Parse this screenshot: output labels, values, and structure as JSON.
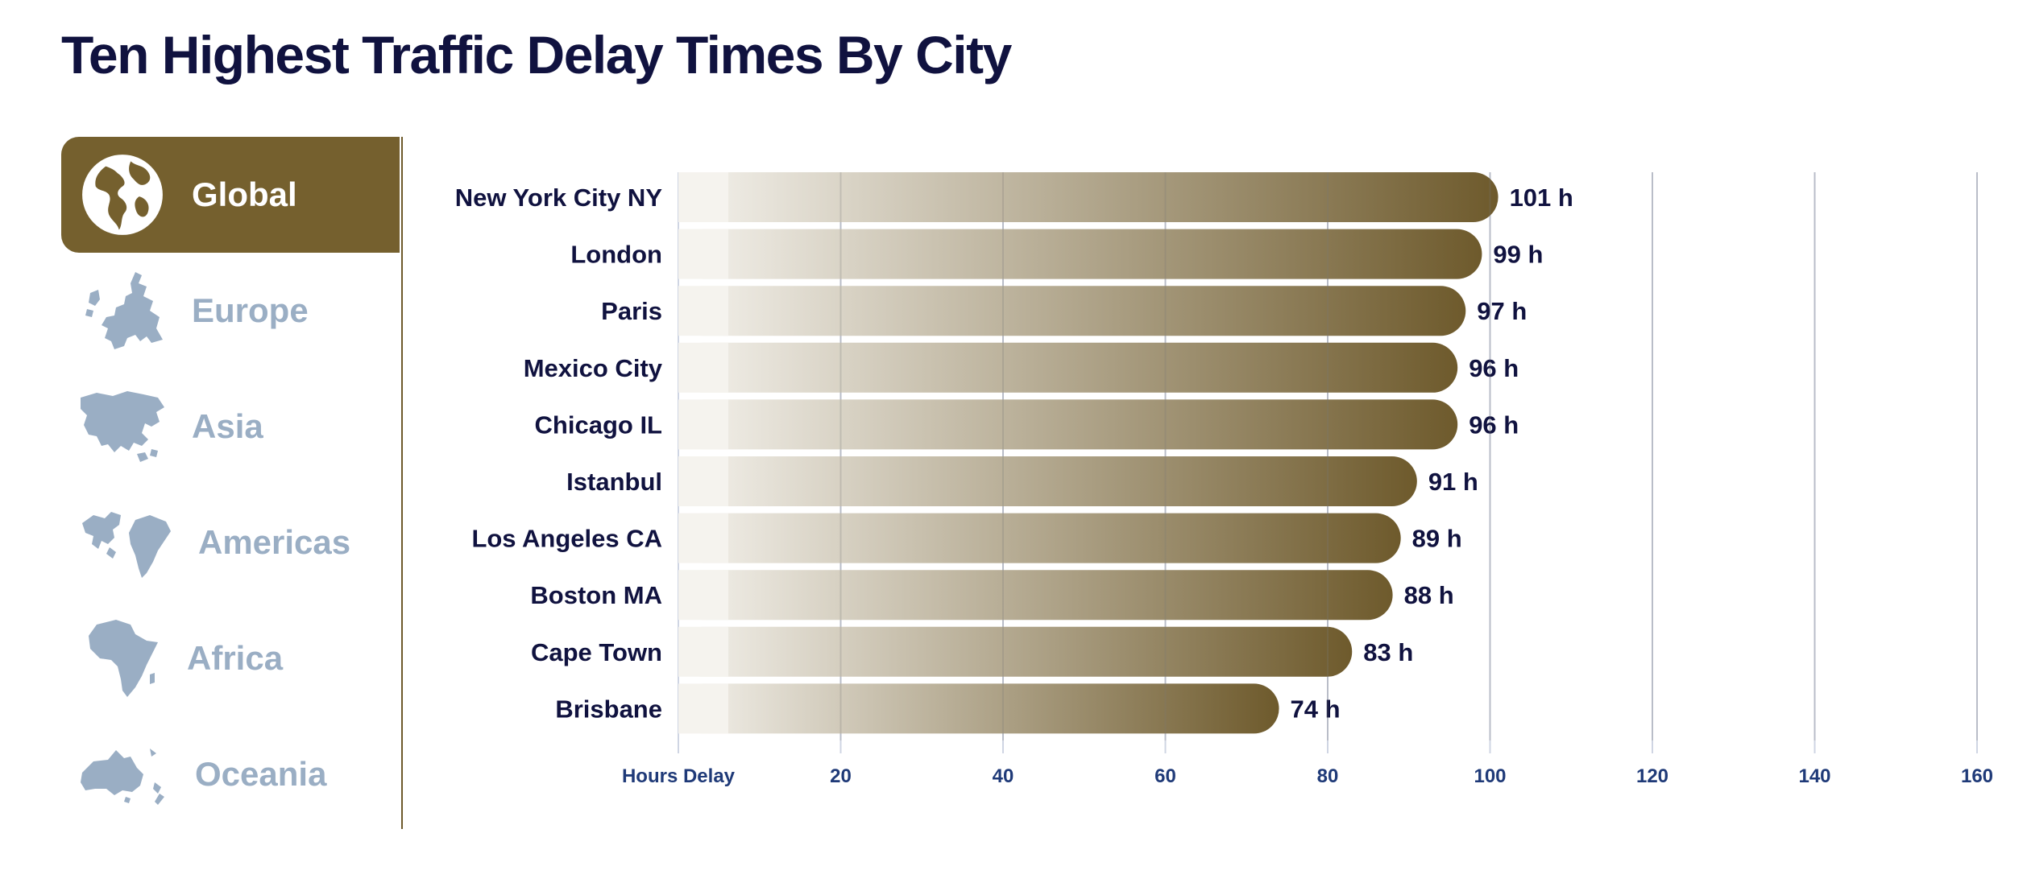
{
  "page": {
    "title": "Ten Highest Traffic Delay Times By City"
  },
  "sidebar": {
    "items": [
      {
        "label": "Global",
        "icon": "globe-icon",
        "active": true
      },
      {
        "label": "Europe",
        "icon": "europe-map-icon",
        "active": false
      },
      {
        "label": "Asia",
        "icon": "asia-map-icon",
        "active": false
      },
      {
        "label": "Americas",
        "icon": "americas-map-icon",
        "active": false
      },
      {
        "label": "Africa",
        "icon": "africa-map-icon",
        "active": false
      },
      {
        "label": "Oceania",
        "icon": "oceania-map-icon",
        "active": false
      }
    ]
  },
  "colors": {
    "accent": "#75602e",
    "bar_start": "#f5f3ee",
    "bar_end": "#6e5a2c",
    "inactive": "#9aaec4",
    "text": "#10123f",
    "axis_text": "#1f3a78"
  },
  "chart_data": {
    "type": "bar",
    "orientation": "horizontal",
    "xlabel": "Hours Delay",
    "value_suffix": " h",
    "xlim": [
      0,
      160
    ],
    "xticks": [
      20,
      40,
      60,
      80,
      100,
      120,
      140,
      160
    ],
    "grid": true,
    "categories": [
      "New York City NY",
      "London",
      "Paris",
      "Mexico City",
      "Chicago IL",
      "Istanbul",
      "Los Angeles CA",
      "Boston MA",
      "Cape Town",
      "Brisbane"
    ],
    "values": [
      101,
      99,
      97,
      96,
      96,
      91,
      89,
      88,
      83,
      74
    ]
  }
}
